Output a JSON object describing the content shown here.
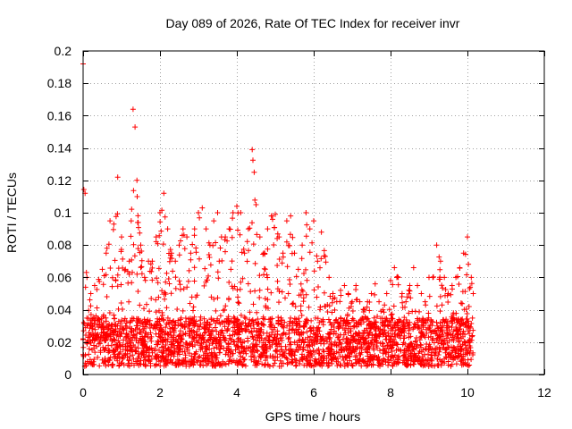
{
  "chart_data": {
    "type": "scatter",
    "title": "Day 089 of 2026, Rate Of TEC Index for receiver invr",
    "xlabel": "GPS time / hours",
    "ylabel": "ROTI / TECUs",
    "xlim": [
      0,
      12
    ],
    "ylim": [
      0,
      0.2
    ],
    "xticks": [
      0,
      2,
      4,
      6,
      8,
      10,
      12
    ],
    "yticks": [
      0,
      0.02,
      0.04,
      0.06,
      0.08,
      0.1,
      0.12,
      0.14,
      0.16,
      0.18,
      0.2
    ],
    "ytick_labels": [
      "0",
      "0.02",
      "0.04",
      "0.06",
      "0.08",
      "0.1",
      "0.12",
      "0.14",
      "0.16",
      "0.18",
      "0.2"
    ],
    "grid": true,
    "marker": "+",
    "color": "#ff0000",
    "series": [
      {
        "name": "ROTI",
        "data_range_hours": [
          0,
          10.15
        ],
        "envelope": {
          "x": [
            0,
            0.05,
            0.1,
            0.2,
            0.3,
            0.5,
            0.6,
            0.7,
            0.8,
            0.9,
            1.0,
            1.1,
            1.2,
            1.25,
            1.3,
            1.35,
            1.4,
            1.5,
            1.6,
            1.7,
            1.8,
            1.9,
            2.0,
            2.1,
            2.2,
            2.3,
            2.4,
            2.5,
            2.6,
            2.7,
            2.8,
            2.9,
            3.0,
            3.1,
            3.2,
            3.3,
            3.4,
            3.5,
            3.6,
            3.7,
            3.8,
            3.9,
            4.0,
            4.1,
            4.2,
            4.3,
            4.4,
            4.45,
            4.5,
            4.6,
            4.7,
            4.8,
            4.9,
            5.0,
            5.1,
            5.2,
            5.3,
            5.4,
            5.5,
            5.6,
            5.7,
            5.8,
            5.9,
            6.0,
            6.1,
            6.2,
            6.3,
            6.4,
            6.5,
            6.6,
            6.7,
            6.8,
            6.9,
            7.0,
            7.1,
            7.2,
            7.3,
            7.4,
            7.5,
            7.6,
            7.7,
            7.8,
            7.9,
            8.0,
            8.1,
            8.2,
            8.3,
            8.4,
            8.5,
            8.6,
            8.7,
            8.8,
            8.9,
            9.0,
            9.1,
            9.2,
            9.3,
            9.4,
            9.5,
            9.6,
            9.7,
            9.8,
            9.9,
            10.0,
            10.1,
            10.15
          ],
          "ymax": [
            0.192,
            0.112,
            0.06,
            0.05,
            0.055,
            0.065,
            0.075,
            0.095,
            0.093,
            0.122,
            0.085,
            0.065,
            0.07,
            0.095,
            0.164,
            0.153,
            0.12,
            0.08,
            0.06,
            0.07,
            0.07,
            0.085,
            0.1,
            0.112,
            0.09,
            0.075,
            0.07,
            0.08,
            0.09,
            0.085,
            0.075,
            0.09,
            0.1,
            0.103,
            0.09,
            0.08,
            0.095,
            0.1,
            0.085,
            0.085,
            0.09,
            0.1,
            0.104,
            0.1,
            0.075,
            0.09,
            0.139,
            0.125,
            0.105,
            0.085,
            0.075,
            0.09,
            0.098,
            0.099,
            0.085,
            0.075,
            0.095,
            0.098,
            0.075,
            0.065,
            0.08,
            0.1,
            0.09,
            0.095,
            0.07,
            0.088,
            0.073,
            0.06,
            0.05,
            0.045,
            0.052,
            0.055,
            0.05,
            0.045,
            0.055,
            0.045,
            0.04,
            0.045,
            0.05,
            0.056,
            0.045,
            0.04,
            0.05,
            0.058,
            0.066,
            0.06,
            0.05,
            0.045,
            0.055,
            0.066,
            0.055,
            0.05,
            0.045,
            0.06,
            0.06,
            0.08,
            0.07,
            0.06,
            0.05,
            0.055,
            0.06,
            0.066,
            0.075,
            0.085,
            0.06,
            0.05
          ]
        },
        "typical_range": [
          0.005,
          0.035
        ]
      }
    ]
  }
}
